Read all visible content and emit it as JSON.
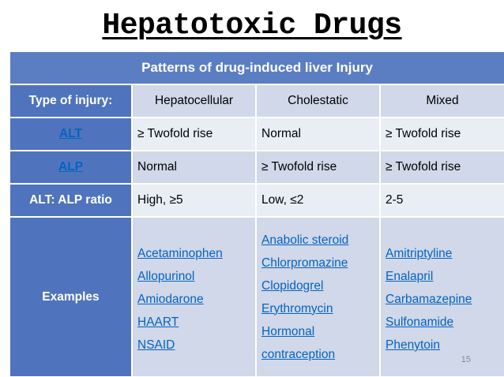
{
  "title": "Hepatotoxic Drugs",
  "table": {
    "caption": "Patterns of drug-induced liver Injury",
    "header": {
      "label": "Type of injury:",
      "columns": [
        "Hepatocellular",
        "Cholestatic",
        "Mixed"
      ]
    },
    "rows": [
      {
        "label": "ALT",
        "is_link": true,
        "values": [
          "≥ Twofold rise",
          "Normal",
          "≥ Twofold rise"
        ]
      },
      {
        "label": "ALP",
        "is_link": true,
        "values": [
          "Normal",
          "≥ Twofold rise",
          "≥ Twofold rise"
        ]
      },
      {
        "label": "ALT: ALP ratio",
        "is_link": false,
        "values": [
          "High, ≥5",
          "Low, ≤2",
          "2-5"
        ]
      }
    ],
    "examples": {
      "label": "Examples",
      "hepatocellular": [
        "Acetaminophen",
        "Allopurinol",
        "Amiodarone",
        "HAART",
        "NSAID"
      ],
      "cholestatic": [
        "Anabolic steroid",
        "Chlorpromazine",
        "Clopidogrel",
        "Erythromycin",
        "Hormonal",
        "contraception"
      ],
      "mixed": [
        "Amitriptyline",
        "Enalapril",
        "Carbamazepine",
        "Sulfonamide",
        "Phenytoin"
      ]
    }
  },
  "page_number": "15",
  "colors": {
    "header_blue": "#4f74bd",
    "row_light": "#d0d8e9",
    "row_lighter": "#e9edf4",
    "link_blue": "#0563c1"
  }
}
